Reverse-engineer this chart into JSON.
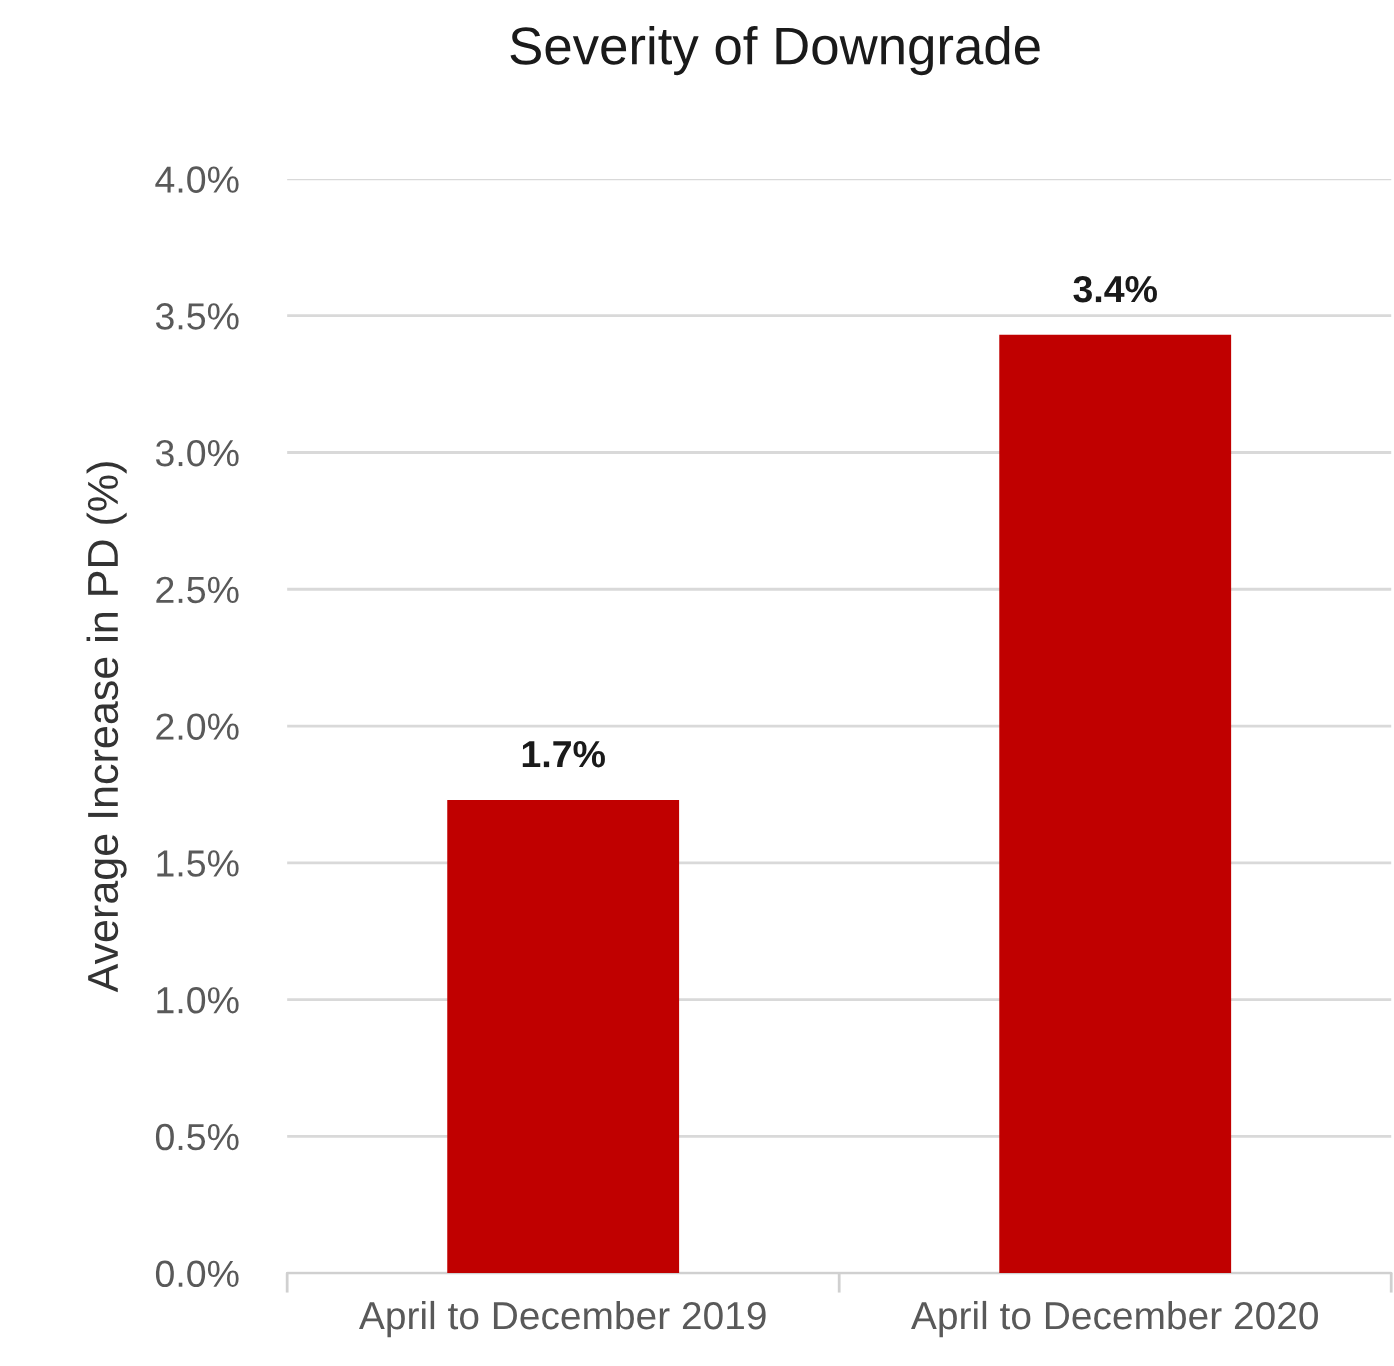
{
  "chart_data": {
    "type": "bar",
    "title": "Severity of Downgrade",
    "ylabel": "Average Increase in PD (%)",
    "categories": [
      "April to December 2019",
      "April to December 2020"
    ],
    "series": [
      {
        "color": "#c00000",
        "values": [
          1.73,
          3.43
        ]
      }
    ],
    "value_labels": [
      "1.7%",
      "3.4%"
    ],
    "ylim": [
      0,
      4
    ],
    "yticks": [
      {
        "value": 0,
        "label": "0.0%"
      },
      {
        "value": 0.5,
        "label": "0.5%"
      },
      {
        "value": 1,
        "label": "1.0%"
      },
      {
        "value": 1.5,
        "label": "1.5%"
      },
      {
        "value": 2,
        "label": "2.0%"
      },
      {
        "value": 2.5,
        "label": "2.5%"
      },
      {
        "value": 3,
        "label": "3.0%"
      },
      {
        "value": 3.5,
        "label": "3.5%"
      },
      {
        "value": 4,
        "label": "4.0%"
      }
    ],
    "grid": "y"
  }
}
